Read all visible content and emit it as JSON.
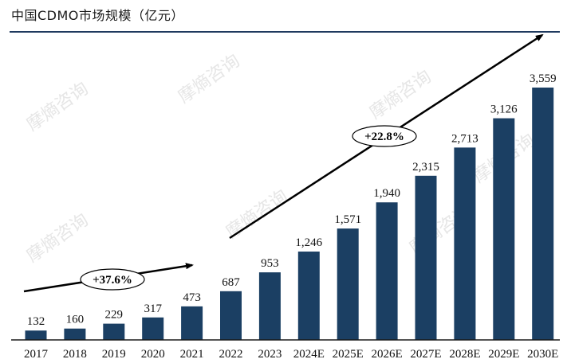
{
  "title": "中国CDMO市场规模（亿元）",
  "watermark": "摩熵咨询",
  "colors": {
    "bar": "#1b3f63",
    "rule": "#1f3a5f",
    "arrow": "#000000"
  },
  "chart_data": {
    "type": "bar",
    "title": "中国CDMO市场规模（亿元）",
    "xlabel": "",
    "ylabel": "",
    "ylim": [
      0,
      3800
    ],
    "grid": false,
    "categories": [
      "2017",
      "2018",
      "2019",
      "2020",
      "2021",
      "2022",
      "2023",
      "2024E",
      "2025E",
      "2026E",
      "2027E",
      "2028E",
      "2029E",
      "2030E"
    ],
    "values": [
      132,
      160,
      229,
      317,
      473,
      687,
      953,
      1246,
      1571,
      1940,
      2315,
      2713,
      3126,
      3559
    ],
    "value_labels": [
      "132",
      "160",
      "229",
      "317",
      "473",
      "687",
      "953",
      "1,246",
      "1,571",
      "1,940",
      "2,315",
      "2,713",
      "3,126",
      "3,559"
    ],
    "annotations": [
      {
        "label": "+37.6%",
        "from": "2017",
        "to": "2021"
      },
      {
        "label": "+22.8%",
        "from": "2022",
        "to": "2030E"
      }
    ]
  }
}
